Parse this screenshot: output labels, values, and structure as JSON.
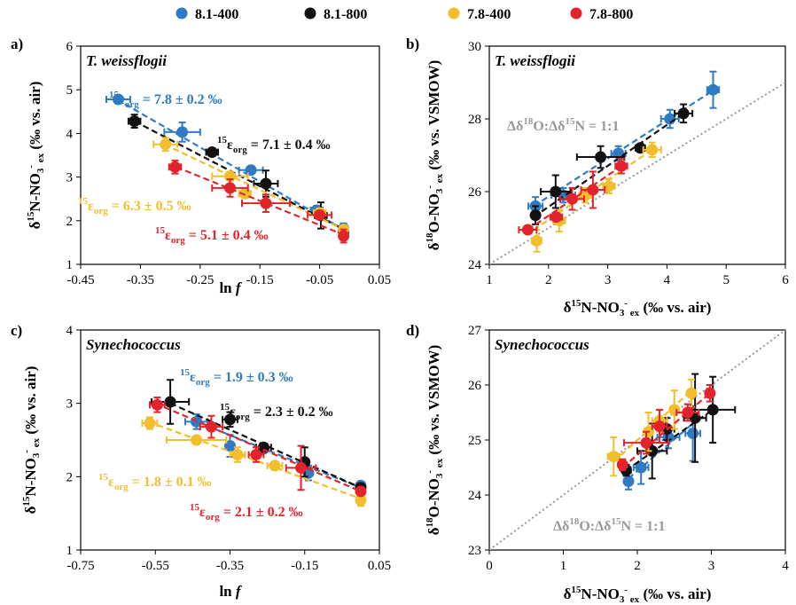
{
  "legend": [
    {
      "name": "8.1-400",
      "color": "#2E7BC4"
    },
    {
      "name": "8.1-800",
      "color": "#111111"
    },
    {
      "name": "7.8-400",
      "color": "#F2BE2B"
    },
    {
      "name": "7.8-800",
      "color": "#E3232B"
    }
  ],
  "oneToOneColor": "#999999",
  "chart_data": [
    {
      "panel": "a)",
      "type": "scatter",
      "species": "T. weissflogii",
      "xlabel": "ln f",
      "ylabel": "δ15N-NO3- ex (‰ vs. air)",
      "xlim": [
        -0.45,
        0.05
      ],
      "ylim": [
        1,
        6
      ],
      "xticks": [
        "-0.45",
        "-0.35",
        "-0.25",
        "-0.15",
        "-0.05",
        "0.05"
      ],
      "yticks": [
        "1",
        "2",
        "3",
        "4",
        "5",
        "6"
      ],
      "grid": false,
      "series": [
        {
          "name": "8.1-400",
          "color": "#2E7BC4",
          "fit": {
            "x": [
              -0.39,
              -0.01
            ],
            "y": [
              4.78,
              1.8
            ]
          },
          "points": [
            {
              "x": -0.387,
              "y": 4.78,
              "xerr": 0.02,
              "yerr": 0.05
            },
            {
              "x": -0.28,
              "y": 4.03,
              "xerr": 0.03,
              "yerr": 0.22
            },
            {
              "x": -0.165,
              "y": 3.16,
              "xerr": 0.02,
              "yerr": 0.06
            },
            {
              "x": -0.055,
              "y": 2.24,
              "xerr": 0.01,
              "yerr": 0.1
            },
            {
              "x": -0.01,
              "y": 1.82,
              "xerr": 0.0,
              "yerr": 0.12
            }
          ]
        },
        {
          "name": "8.1-800",
          "color": "#111111",
          "fit": {
            "x": [
              -0.36,
              -0.01
            ],
            "y": [
              4.28,
              1.8
            ]
          },
          "points": [
            {
              "x": -0.36,
              "y": 4.28,
              "xerr": 0.01,
              "yerr": 0.15
            },
            {
              "x": -0.23,
              "y": 3.57,
              "xerr": 0.01,
              "yerr": 0.06
            },
            {
              "x": -0.14,
              "y": 2.85,
              "xerr": 0.02,
              "yerr": 0.3
            },
            {
              "x": -0.048,
              "y": 2.12,
              "xerr": 0.01,
              "yerr": 0.3
            },
            {
              "x": -0.01,
              "y": 1.75,
              "xerr": 0.0,
              "yerr": 0.1
            }
          ]
        },
        {
          "name": "7.8-400",
          "color": "#F2BE2B",
          "fit": {
            "x": [
              -0.31,
              -0.01
            ],
            "y": [
              3.75,
              1.8
            ]
          },
          "points": [
            {
              "x": -0.308,
              "y": 3.75,
              "xerr": 0.02,
              "yerr": 0.15
            },
            {
              "x": -0.2,
              "y": 3.02,
              "xerr": 0.03,
              "yerr": 0.1
            },
            {
              "x": -0.175,
              "y": 2.62,
              "xerr": 0.01,
              "yerr": 0.1
            },
            {
              "x": -0.05,
              "y": 2.18,
              "xerr": 0.01,
              "yerr": 0.1
            },
            {
              "x": -0.01,
              "y": 1.8,
              "xerr": 0.0,
              "yerr": 0.08
            }
          ]
        },
        {
          "name": "7.8-800",
          "color": "#E3232B",
          "fit": {
            "x": [
              -0.29,
              -0.01
            ],
            "y": [
              3.23,
              1.68
            ]
          },
          "points": [
            {
              "x": -0.292,
              "y": 3.23,
              "xerr": 0.01,
              "yerr": 0.15
            },
            {
              "x": -0.2,
              "y": 2.75,
              "xerr": 0.03,
              "yerr": 0.2
            },
            {
              "x": -0.14,
              "y": 2.4,
              "xerr": 0.04,
              "yerr": 0.2
            },
            {
              "x": -0.05,
              "y": 2.13,
              "xerr": 0.02,
              "yerr": 0.1
            },
            {
              "x": -0.01,
              "y": 1.65,
              "xerr": 0.0,
              "yerr": 0.15
            }
          ]
        }
      ],
      "annotations": [
        {
          "sup": "15",
          "text": "εorg = 7.8 ± 0.2 ‰",
          "color": "#2E7BC4"
        },
        {
          "sup": "15",
          "text": "εorg = 7.1 ± 0.4 ‰",
          "color": "#111111"
        },
        {
          "sup": "15",
          "text": "εorg = 6.3 ± 0.5 ‰",
          "color": "#F2BE2B"
        },
        {
          "sup": "15",
          "text": "εorg = 5.1 ± 0.4 ‰",
          "color": "#E3232B"
        }
      ]
    },
    {
      "panel": "b)",
      "type": "scatter",
      "species": "T. weissflogii",
      "xlabel": "δ15N-NO3- ex (‰ vs. air)",
      "ylabel": "δ18O-NO3- ex (‰ vs. VSMOW)",
      "xlim": [
        1,
        6
      ],
      "ylim": [
        24,
        30
      ],
      "xticks": [
        "1",
        "2",
        "3",
        "4",
        "5",
        "6"
      ],
      "yticks": [
        "24",
        "26",
        "28",
        "30"
      ],
      "grid": false,
      "oneToOne": {
        "label": "Δδ18O:Δδ15N = 1:1"
      },
      "series": [
        {
          "name": "8.1-400",
          "color": "#2E7BC4",
          "fit": {
            "x": [
              1.75,
              4.8
            ],
            "y": [
              25.6,
              28.8
            ]
          },
          "points": [
            {
              "x": 1.78,
              "y": 25.6,
              "xerr": 0.12,
              "yerr": 0.25
            },
            {
              "x": 2.25,
              "y": 25.9,
              "xerr": 0.2,
              "yerr": 0.2
            },
            {
              "x": 3.18,
              "y": 27.05,
              "xerr": 0.12,
              "yerr": 0.2
            },
            {
              "x": 4.05,
              "y": 28.0,
              "xerr": 0.15,
              "yerr": 0.25
            },
            {
              "x": 4.78,
              "y": 28.8,
              "xerr": 0.1,
              "yerr": 0.5
            }
          ]
        },
        {
          "name": "8.1-800",
          "color": "#111111",
          "fit": {
            "x": [
              1.75,
              4.28
            ],
            "y": [
              25.3,
              28.15
            ]
          },
          "points": [
            {
              "x": 1.78,
              "y": 25.35,
              "xerr": 0.05,
              "yerr": 0.25
            },
            {
              "x": 2.12,
              "y": 26.0,
              "xerr": 0.25,
              "yerr": 0.45
            },
            {
              "x": 2.88,
              "y": 26.95,
              "xerr": 0.4,
              "yerr": 0.3
            },
            {
              "x": 3.55,
              "y": 27.2,
              "xerr": 0.08,
              "yerr": 0.1
            },
            {
              "x": 4.28,
              "y": 28.15,
              "xerr": 0.15,
              "yerr": 0.25
            }
          ]
        },
        {
          "name": "7.8-400",
          "color": "#F2BE2B",
          "fit": {
            "x": [
              1.75,
              3.75
            ],
            "y": [
              24.95,
              27.15
            ]
          },
          "points": [
            {
              "x": 1.8,
              "y": 24.65,
              "xerr": 0.08,
              "yerr": 0.3
            },
            {
              "x": 2.18,
              "y": 25.2,
              "xerr": 0.1,
              "yerr": 0.3
            },
            {
              "x": 2.62,
              "y": 25.9,
              "xerr": 0.1,
              "yerr": 0.2
            },
            {
              "x": 3.02,
              "y": 26.15,
              "xerr": 0.1,
              "yerr": 0.2
            },
            {
              "x": 3.75,
              "y": 27.15,
              "xerr": 0.15,
              "yerr": 0.2
            }
          ]
        },
        {
          "name": "7.8-800",
          "color": "#E3232B",
          "fit": {
            "x": [
              1.65,
              3.23
            ],
            "y": [
              24.95,
              26.7
            ]
          },
          "points": [
            {
              "x": 1.65,
              "y": 24.95,
              "xerr": 0.15,
              "yerr": 0.05
            },
            {
              "x": 2.13,
              "y": 25.3,
              "xerr": 0.1,
              "yerr": 0.1
            },
            {
              "x": 2.4,
              "y": 25.8,
              "xerr": 0.2,
              "yerr": 0.3
            },
            {
              "x": 2.75,
              "y": 26.05,
              "xerr": 0.2,
              "yerr": 0.5
            },
            {
              "x": 3.23,
              "y": 26.7,
              "xerr": 0.1,
              "yerr": 0.2
            }
          ]
        }
      ]
    },
    {
      "panel": "c)",
      "type": "scatter",
      "species": "Synechococcus",
      "xlabel": "ln f",
      "ylabel": "δ15N-NO3- ex (‰ vs. air)",
      "xlim": [
        -0.75,
        0.05
      ],
      "ylim": [
        1,
        4
      ],
      "xticks": [
        "-0.75",
        "-0.55",
        "-0.35",
        "-0.15",
        "0.05"
      ],
      "yticks": [
        "1",
        "2",
        "3",
        "4"
      ],
      "grid": false,
      "series": [
        {
          "name": "8.1-400",
          "color": "#2E7BC4",
          "fit": {
            "x": [
              -0.44,
              0.0
            ],
            "y": [
              2.75,
              1.85
            ]
          },
          "points": [
            {
              "x": -0.44,
              "y": 2.75,
              "xerr": 0.03,
              "yerr": 0.1
            },
            {
              "x": -0.35,
              "y": 2.42,
              "xerr": 0.01,
              "yerr": 0.15
            },
            {
              "x": -0.26,
              "y": 2.38,
              "xerr": 0.01,
              "yerr": 0.05
            },
            {
              "x": -0.14,
              "y": 2.05,
              "xerr": 0.01,
              "yerr": 0.1
            },
            {
              "x": 0.0,
              "y": 1.88,
              "xerr": 0.0,
              "yerr": 0.05
            }
          ]
        },
        {
          "name": "8.1-800",
          "color": "#111111",
          "fit": {
            "x": [
              -0.51,
              0.0
            ],
            "y": [
              3.0,
              1.85
            ]
          },
          "points": [
            {
              "x": -0.51,
              "y": 3.02,
              "xerr": 0.05,
              "yerr": 0.3
            },
            {
              "x": -0.35,
              "y": 2.78,
              "xerr": 0.02,
              "yerr": 0.1
            },
            {
              "x": -0.26,
              "y": 2.4,
              "xerr": 0.02,
              "yerr": 0.05
            },
            {
              "x": -0.15,
              "y": 2.2,
              "xerr": 0.01,
              "yerr": 0.2
            },
            {
              "x": 0.0,
              "y": 1.85,
              "xerr": 0.0,
              "yerr": 0.05
            }
          ]
        },
        {
          "name": "7.8-400",
          "color": "#F2BE2B",
          "fit": {
            "x": [
              -0.57,
              0.0
            ],
            "y": [
              2.75,
              1.7
            ]
          },
          "points": [
            {
              "x": -0.565,
              "y": 2.73,
              "xerr": 0.02,
              "yerr": 0.08
            },
            {
              "x": -0.44,
              "y": 2.5,
              "xerr": 0.08,
              "yerr": 0.05
            },
            {
              "x": -0.33,
              "y": 2.3,
              "xerr": 0.02,
              "yerr": 0.1
            },
            {
              "x": -0.23,
              "y": 2.15,
              "xerr": 0.02,
              "yerr": 0.05
            },
            {
              "x": 0.0,
              "y": 1.68,
              "xerr": 0.0,
              "yerr": 0.08
            }
          ]
        },
        {
          "name": "7.8-800",
          "color": "#E3232B",
          "fit": {
            "x": [
              -0.55,
              0.0
            ],
            "y": [
              3.0,
              1.8
            ]
          },
          "points": [
            {
              "x": -0.545,
              "y": 2.98,
              "xerr": 0.02,
              "yerr": 0.1
            },
            {
              "x": -0.4,
              "y": 2.68,
              "xerr": 0.03,
              "yerr": 0.15
            },
            {
              "x": -0.28,
              "y": 2.3,
              "xerr": 0.02,
              "yerr": 0.1
            },
            {
              "x": -0.16,
              "y": 2.12,
              "xerr": 0.04,
              "yerr": 0.3
            },
            {
              "x": 0.0,
              "y": 1.8,
              "xerr": 0.0,
              "yerr": 0.05
            }
          ]
        }
      ],
      "annotations": [
        {
          "sup": "15",
          "text": "εorg = 1.9 ± 0.3 ‰",
          "color": "#2E7BC4"
        },
        {
          "sup": "15",
          "text": "εorg = 2.3 ± 0.2 ‰",
          "color": "#111111"
        },
        {
          "sup": "15",
          "text": "εorg = 1.8 ± 0.1 ‰",
          "color": "#F2BE2B"
        },
        {
          "sup": "15",
          "text": "εorg = 2.1 ± 0.2 ‰",
          "color": "#E3232B"
        }
      ]
    },
    {
      "panel": "d)",
      "type": "scatter",
      "species": "Synechococcus",
      "xlabel": "δ15N-NO3- ex (‰ vs. air)",
      "ylabel": "δ18O-NO3- ex (‰ vs. VSMOW)",
      "xlim": [
        0,
        4
      ],
      "ylim": [
        23,
        27
      ],
      "xticks": [
        "0",
        "1",
        "2",
        "3",
        "4"
      ],
      "yticks": [
        "23",
        "24",
        "25",
        "26",
        "27"
      ],
      "grid": false,
      "oneToOne": {
        "label": "Δδ18O:Δδ15N = 1:1"
      },
      "series": [
        {
          "name": "8.1-400",
          "color": "#2E7BC4",
          "fit": {
            "x": [
              1.88,
              2.75
            ],
            "y": [
              24.3,
              25.3
            ]
          },
          "points": [
            {
              "x": 1.88,
              "y": 24.25,
              "xerr": 0.05,
              "yerr": 0.15
            },
            {
              "x": 2.05,
              "y": 24.5,
              "xerr": 0.1,
              "yerr": 0.3
            },
            {
              "x": 2.38,
              "y": 25.2,
              "xerr": 0.05,
              "yerr": 0.2
            },
            {
              "x": 2.42,
              "y": 25.05,
              "xerr": 0.15,
              "yerr": 0.2
            },
            {
              "x": 2.75,
              "y": 25.12,
              "xerr": 0.1,
              "yerr": 0.5
            }
          ]
        },
        {
          "name": "8.1-800",
          "color": "#111111",
          "fit": {
            "x": [
              1.85,
              3.02
            ],
            "y": [
              24.45,
              25.55
            ]
          },
          "points": [
            {
              "x": 1.85,
              "y": 24.45,
              "xerr": 0.05,
              "yerr": 0.1
            },
            {
              "x": 2.2,
              "y": 24.8,
              "xerr": 0.2,
              "yerr": 0.5
            },
            {
              "x": 2.4,
              "y": 25.2,
              "xerr": 0.1,
              "yerr": 0.2
            },
            {
              "x": 2.78,
              "y": 25.4,
              "xerr": 0.15,
              "yerr": 0.8
            },
            {
              "x": 3.02,
              "y": 25.55,
              "xerr": 0.3,
              "yerr": 0.6
            }
          ]
        },
        {
          "name": "7.8-400",
          "color": "#F2BE2B",
          "fit": {
            "x": [
              1.68,
              2.73
            ],
            "y": [
              24.6,
              25.9
            ]
          },
          "points": [
            {
              "x": 1.68,
              "y": 24.7,
              "xerr": 0.08,
              "yerr": 0.35
            },
            {
              "x": 2.15,
              "y": 25.15,
              "xerr": 0.05,
              "yerr": 0.35
            },
            {
              "x": 2.3,
              "y": 25.35,
              "xerr": 0.1,
              "yerr": 0.2
            },
            {
              "x": 2.5,
              "y": 25.55,
              "xerr": 0.05,
              "yerr": 0.35
            },
            {
              "x": 2.73,
              "y": 25.85,
              "xerr": 0.05,
              "yerr": 0.25
            }
          ]
        },
        {
          "name": "7.8-800",
          "color": "#E3232B",
          "fit": {
            "x": [
              1.8,
              2.98
            ],
            "y": [
              24.5,
              25.85
            ]
          },
          "points": [
            {
              "x": 1.8,
              "y": 24.55,
              "xerr": 0.05,
              "yerr": 0.1
            },
            {
              "x": 2.12,
              "y": 24.95,
              "xerr": 0.3,
              "yerr": 0.2
            },
            {
              "x": 2.3,
              "y": 25.25,
              "xerr": 0.1,
              "yerr": 0.3
            },
            {
              "x": 2.68,
              "y": 25.5,
              "xerr": 0.15,
              "yerr": 0.15
            },
            {
              "x": 2.98,
              "y": 25.85,
              "xerr": 0.05,
              "yerr": 0.15
            }
          ]
        }
      ]
    }
  ]
}
